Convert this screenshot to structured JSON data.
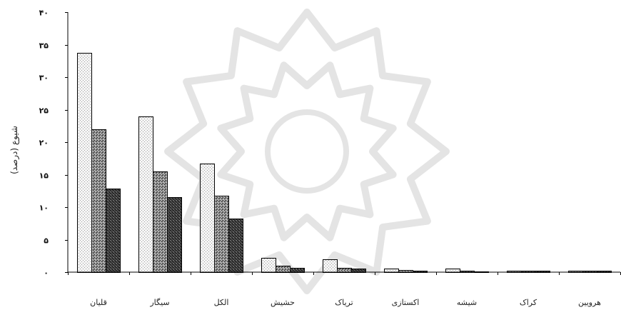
{
  "chart_data": {
    "type": "bar",
    "ylabel": "شیوع (درصد)",
    "ylim": [
      0,
      40
    ],
    "ytick_values": [
      0,
      5,
      10,
      15,
      20,
      25,
      30,
      35,
      40
    ],
    "yticks": [
      "۰",
      "۵",
      "۱۰",
      "۱۵",
      "۲۰",
      "۲۵",
      "۳۰",
      "۳۵",
      "۴۰"
    ],
    "categories": [
      "قلیان",
      "سیگار",
      "الکل",
      "حشیش",
      "تریاک",
      "اکستازی",
      "شیشه",
      "کراک",
      "هرویین"
    ],
    "series": [
      {
        "values": [
          33.7,
          24.0,
          16.7,
          2.2,
          2.0,
          0.6,
          0.6,
          0.2,
          0.2
        ],
        "color": "#f4f4f4"
      },
      {
        "values": [
          22.0,
          15.5,
          11.8,
          1.0,
          0.7,
          0.3,
          0.2,
          0.2,
          0.2
        ],
        "color": "#9a9a9a"
      },
      {
        "values": [
          12.9,
          11.5,
          8.2,
          0.7,
          0.5,
          0.2,
          0.1,
          0.2,
          0.2
        ],
        "color": "#4a4a4a"
      }
    ],
    "grid": false,
    "watermark_color": "#e4e4e4"
  }
}
